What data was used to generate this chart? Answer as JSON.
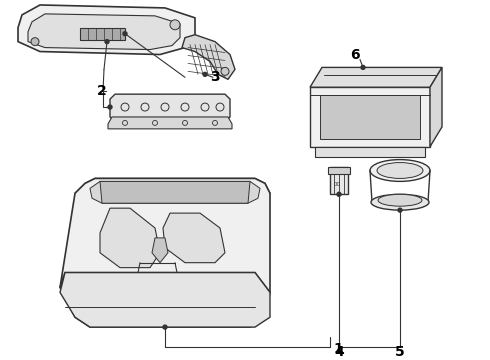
{
  "background_color": "#ffffff",
  "line_color": "#333333",
  "label_color": "#000000",
  "fig_width": 4.9,
  "fig_height": 3.6,
  "dpi": 100,
  "lw_main": 1.0,
  "lw_thin": 0.6,
  "label_fontsize": 10
}
